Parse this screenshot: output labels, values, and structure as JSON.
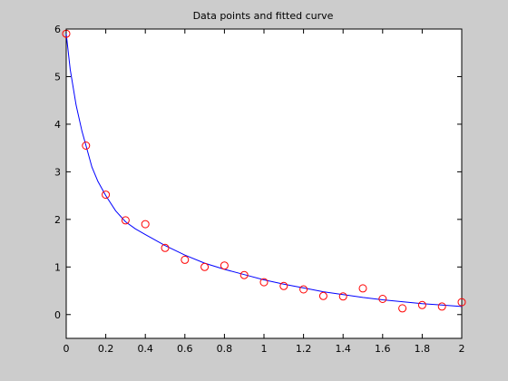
{
  "figure": {
    "background": "#cccccc",
    "axes_background": "#ffffff"
  },
  "chart_data": {
    "type": "scatter",
    "title": "Data points and fitted curve",
    "xlabel": "",
    "ylabel": "",
    "xlim": [
      0,
      2
    ],
    "ylim": [
      -0.5,
      6
    ],
    "xticks": [
      "0",
      "0.2",
      "0.4",
      "0.6",
      "0.8",
      "1",
      "1.2",
      "1.4",
      "1.6",
      "1.8",
      "2"
    ],
    "xtick_values": [
      0,
      0.2,
      0.4,
      0.6,
      0.8,
      1.0,
      1.2,
      1.4,
      1.6,
      1.8,
      2.0
    ],
    "yticks": [
      "0",
      "1",
      "2",
      "3",
      "4",
      "5",
      "6"
    ],
    "ytick_values": [
      0,
      1,
      2,
      3,
      4,
      5,
      6
    ],
    "grid": false,
    "legend": "none",
    "series": [
      {
        "kind": "markers",
        "marker": "circle",
        "color": "#ff0000",
        "x": [
          0,
          0.1,
          0.2,
          0.3,
          0.4,
          0.5,
          0.6,
          0.7,
          0.8,
          0.9,
          1.0,
          1.1,
          1.2,
          1.3,
          1.4,
          1.5,
          1.6,
          1.7,
          1.8,
          1.9,
          2.0
        ],
        "y": [
          5.9,
          3.55,
          2.52,
          1.98,
          1.9,
          1.4,
          1.15,
          1.0,
          1.03,
          0.83,
          0.68,
          0.6,
          0.53,
          0.39,
          0.38,
          0.55,
          0.33,
          0.13,
          0.2,
          0.17,
          0.26
        ]
      },
      {
        "kind": "line",
        "color": "#0000ff",
        "x": [
          0,
          0.02,
          0.05,
          0.08,
          0.1,
          0.13,
          0.16,
          0.2,
          0.25,
          0.3,
          0.35,
          0.4,
          0.5,
          0.6,
          0.7,
          0.8,
          0.9,
          1.0,
          1.1,
          1.2,
          1.3,
          1.4,
          1.5,
          1.6,
          1.7,
          1.8,
          1.9,
          2.0
        ],
        "y": [
          5.9,
          5.15,
          4.4,
          3.85,
          3.55,
          3.1,
          2.8,
          2.5,
          2.18,
          1.95,
          1.8,
          1.68,
          1.45,
          1.25,
          1.08,
          0.95,
          0.84,
          0.73,
          0.64,
          0.56,
          0.48,
          0.42,
          0.36,
          0.31,
          0.27,
          0.23,
          0.2,
          0.17
        ]
      }
    ]
  }
}
